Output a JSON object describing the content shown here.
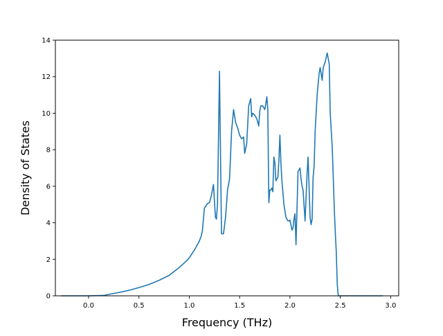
{
  "chart_data": {
    "type": "line",
    "title": "",
    "xlabel": "Frequency (THz)",
    "ylabel": "Density of States",
    "xlim": [
      -0.33,
      3.08
    ],
    "ylim": [
      0,
      14
    ],
    "xticks": [
      0.0,
      0.5,
      1.0,
      1.5,
      2.0,
      2.5,
      3.0
    ],
    "xtick_labels": [
      "0.0",
      "0.5",
      "1.0",
      "1.5",
      "2.0",
      "2.5",
      "3.0"
    ],
    "yticks": [
      0,
      2,
      4,
      6,
      8,
      10,
      12,
      14
    ],
    "ytick_labels": [
      "0",
      "2",
      "4",
      "6",
      "8",
      "10",
      "12",
      "14"
    ],
    "grid": false,
    "legend": null,
    "series": [
      {
        "color": "#1f77b4",
        "x": [
          -0.27,
          0.0,
          0.15,
          0.2,
          0.3,
          0.4,
          0.5,
          0.6,
          0.7,
          0.8,
          0.9,
          0.97,
          1.0,
          1.05,
          1.1,
          1.12,
          1.13,
          1.15,
          1.18,
          1.2,
          1.22,
          1.24,
          1.26,
          1.27,
          1.28,
          1.3,
          1.32,
          1.34,
          1.36,
          1.38,
          1.4,
          1.42,
          1.44,
          1.46,
          1.48,
          1.5,
          1.52,
          1.54,
          1.55,
          1.57,
          1.59,
          1.61,
          1.62,
          1.63,
          1.65,
          1.67,
          1.69,
          1.7,
          1.71,
          1.73,
          1.75,
          1.76,
          1.77,
          1.78,
          1.79,
          1.8,
          1.81,
          1.82,
          1.83,
          1.84,
          1.85,
          1.86,
          1.88,
          1.89,
          1.9,
          1.91,
          1.92,
          1.94,
          1.96,
          1.98,
          1.99,
          2.0,
          2.02,
          2.03,
          2.04,
          2.05,
          2.06,
          2.08,
          2.1,
          2.11,
          2.12,
          2.13,
          2.15,
          2.17,
          2.18,
          2.19,
          2.2,
          2.21,
          2.22,
          2.23,
          2.24,
          2.25,
          2.27,
          2.29,
          2.3,
          2.32,
          2.33,
          2.35,
          2.37,
          2.38,
          2.39,
          2.4,
          2.42,
          2.43,
          2.44,
          2.45,
          2.46,
          2.47,
          2.48,
          2.49,
          2.5,
          2.52,
          2.55,
          2.58,
          2.6,
          2.62,
          2.63,
          2.64,
          2.65,
          2.67,
          2.7,
          2.75,
          2.8,
          2.85,
          2.9,
          2.92
        ],
        "values": [
          0.0,
          0.0,
          0.02,
          0.08,
          0.18,
          0.3,
          0.45,
          0.62,
          0.85,
          1.12,
          1.55,
          1.9,
          2.08,
          2.5,
          3.0,
          3.3,
          3.55,
          4.8,
          5.05,
          5.1,
          5.5,
          6.1,
          4.3,
          4.2,
          5.0,
          12.3,
          3.4,
          3.4,
          4.3,
          5.8,
          6.4,
          9.0,
          10.2,
          9.5,
          9.2,
          8.8,
          8.6,
          8.7,
          7.8,
          8.3,
          10.4,
          10.8,
          9.8,
          10.0,
          9.9,
          9.7,
          9.3,
          10.1,
          10.4,
          10.4,
          10.2,
          10.5,
          10.9,
          10.2,
          5.1,
          5.8,
          5.8,
          5.9,
          5.7,
          7.6,
          7.3,
          6.3,
          6.5,
          7.4,
          8.8,
          7.3,
          6.3,
          5.0,
          4.3,
          4.1,
          4.1,
          4.15,
          3.6,
          3.7,
          4.2,
          4.5,
          2.8,
          6.8,
          7.0,
          6.4,
          6.0,
          5.8,
          4.1,
          6.7,
          7.6,
          5.9,
          4.3,
          3.9,
          4.2,
          6.5,
          7.1,
          9.0,
          11.0,
          12.2,
          12.5,
          11.8,
          12.5,
          12.8,
          13.3,
          13.0,
          12.7,
          10.0,
          8.1,
          6.5,
          4.8,
          3.5,
          2.4,
          0.6,
          0.0,
          0.0,
          0.0,
          0.0,
          0.0,
          0.0,
          0.0,
          0.0,
          0.0,
          0.0,
          0.0,
          0.0,
          0.0,
          0.0,
          0.0,
          0.0,
          0.0,
          0.0
        ]
      }
    ]
  }
}
